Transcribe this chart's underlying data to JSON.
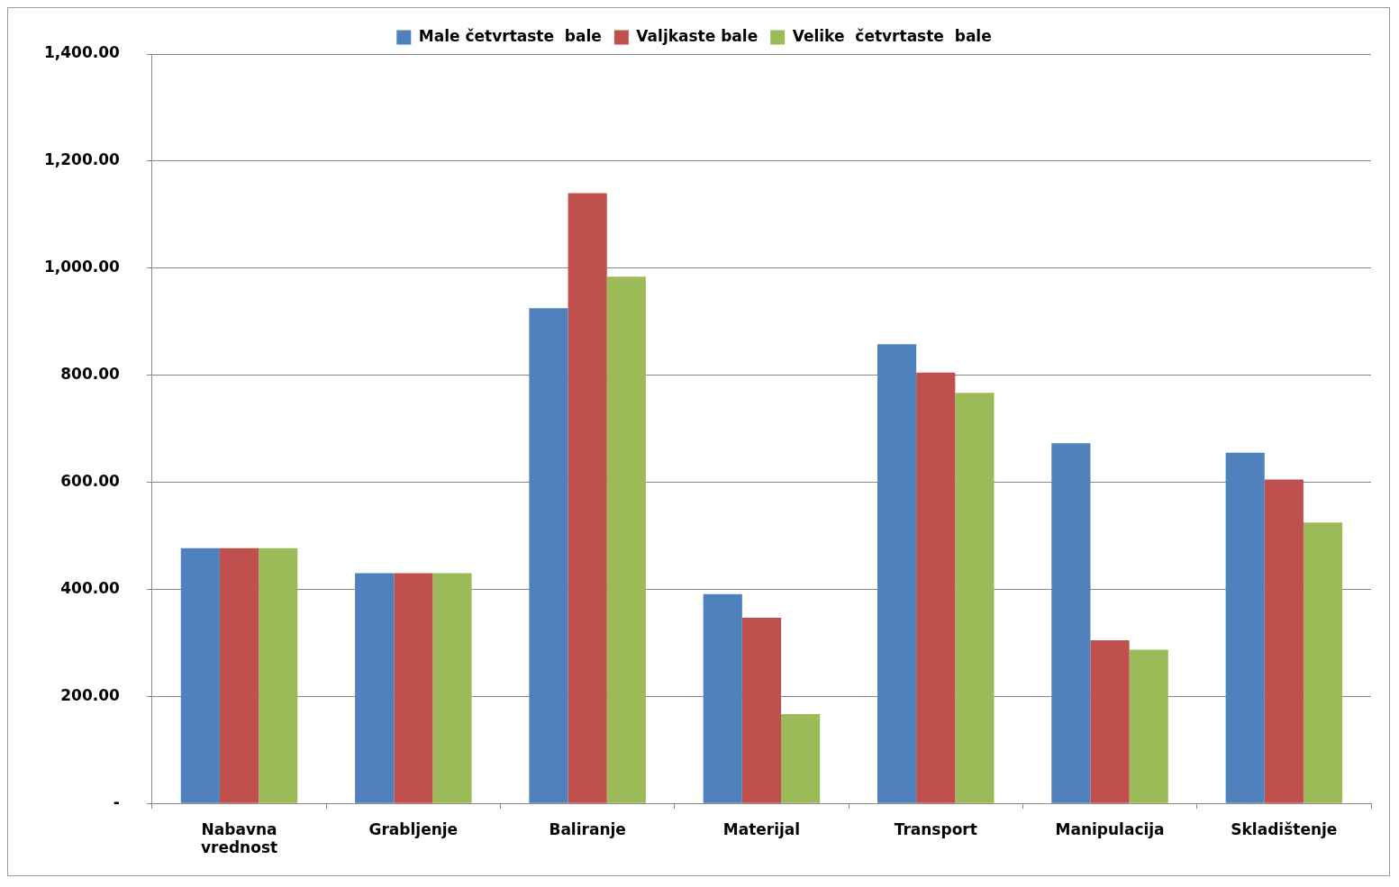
{
  "chart_data": {
    "type": "bar",
    "categories": [
      "Nabavna vrednost",
      "Grabljenje",
      "Baliranje",
      "Materijal",
      "Transport",
      "Manipulacija",
      "Skladištenje"
    ],
    "series": [
      {
        "name": "Male četvrtaste  bale",
        "color": "#4f81bd",
        "values": [
          477,
          430,
          925,
          391,
          858,
          673,
          655
        ]
      },
      {
        "name": "Valjkaste bale",
        "color": "#c0504d",
        "values": [
          477,
          430,
          1140,
          347,
          805,
          305,
          605
        ]
      },
      {
        "name": "Velike  četvrtaste  bale",
        "color": "#9bbb59",
        "values": [
          477,
          430,
          984,
          167,
          767,
          287,
          525
        ]
      }
    ],
    "ylim": [
      0,
      1400
    ],
    "yticks": [
      {
        "value": 0,
        "label": "-"
      },
      {
        "value": 200,
        "label": "200.00"
      },
      {
        "value": 400,
        "label": "400.00"
      },
      {
        "value": 600,
        "label": "600.00"
      },
      {
        "value": 800,
        "label": "800.00"
      },
      {
        "value": 1000,
        "label": "1,000.00"
      },
      {
        "value": 1200,
        "label": "1,200.00"
      },
      {
        "value": 1400,
        "label": "1,400.00"
      }
    ],
    "grid": "y",
    "legend": "top"
  }
}
